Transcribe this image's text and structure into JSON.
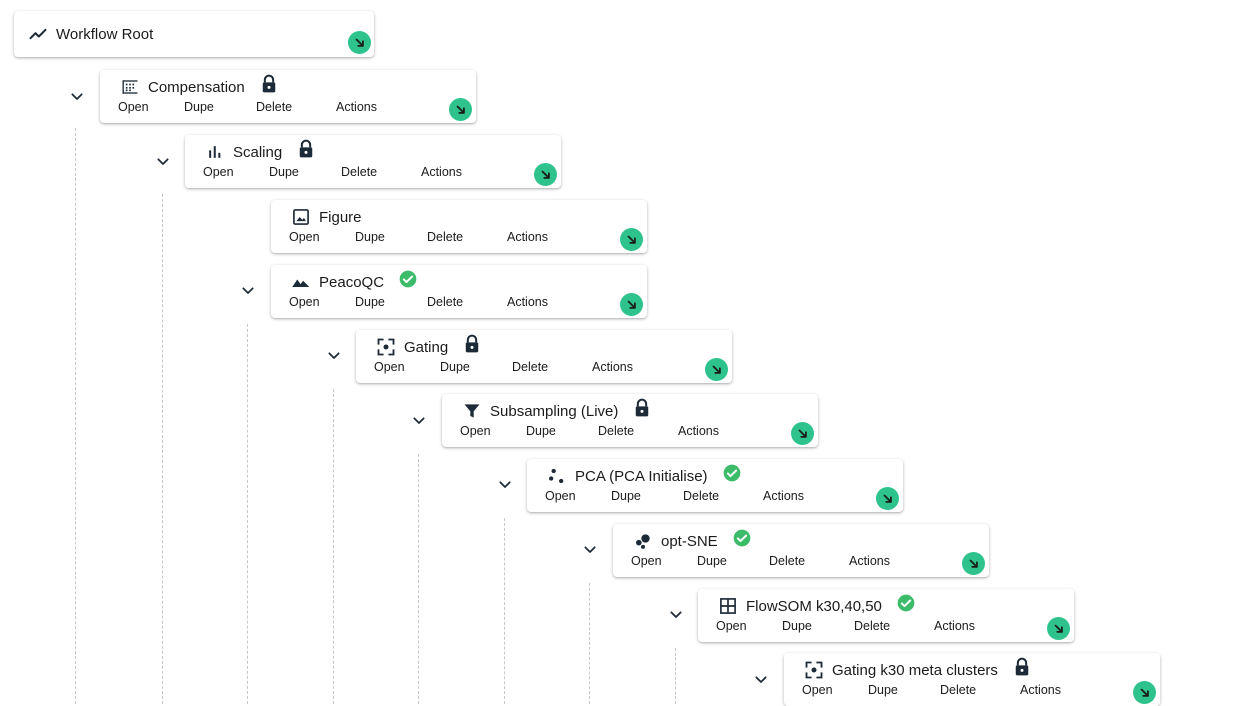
{
  "root": {
    "title": "Workflow Root",
    "icon": "trending-line-icon"
  },
  "action_labels": {
    "open": "Open",
    "dupe": "Dupe",
    "delete": "Delete",
    "actions": "Actions"
  },
  "colors": {
    "accent_green": "#2ec38c",
    "status_ok": "#3cbc6a",
    "icon_dark": "#1d2a38"
  },
  "nodes": [
    {
      "title": "Compensation",
      "icon": "grid-dots-icon",
      "status": "locked"
    },
    {
      "title": "Scaling",
      "icon": "bar-chart-icon",
      "status": "locked"
    },
    {
      "title": "Figure",
      "icon": "image-icon",
      "status": "none"
    },
    {
      "title": "PeacoQC",
      "icon": "mountains-icon",
      "status": "done"
    },
    {
      "title": "Gating",
      "icon": "focus-frame-icon",
      "status": "locked"
    },
    {
      "title": "Subsampling (Live)",
      "icon": "filter-icon",
      "status": "locked"
    },
    {
      "title": "PCA (PCA Initialise)",
      "icon": "scatter-dots-icon",
      "status": "done"
    },
    {
      "title": "opt-SNE",
      "icon": "bubble-cluster-icon",
      "status": "done"
    },
    {
      "title": "FlowSOM k30,40,50",
      "icon": "grid-table-icon",
      "status": "done"
    },
    {
      "title": "Gating k30 meta clusters",
      "icon": "focus-frame-icon",
      "status": "locked"
    }
  ]
}
